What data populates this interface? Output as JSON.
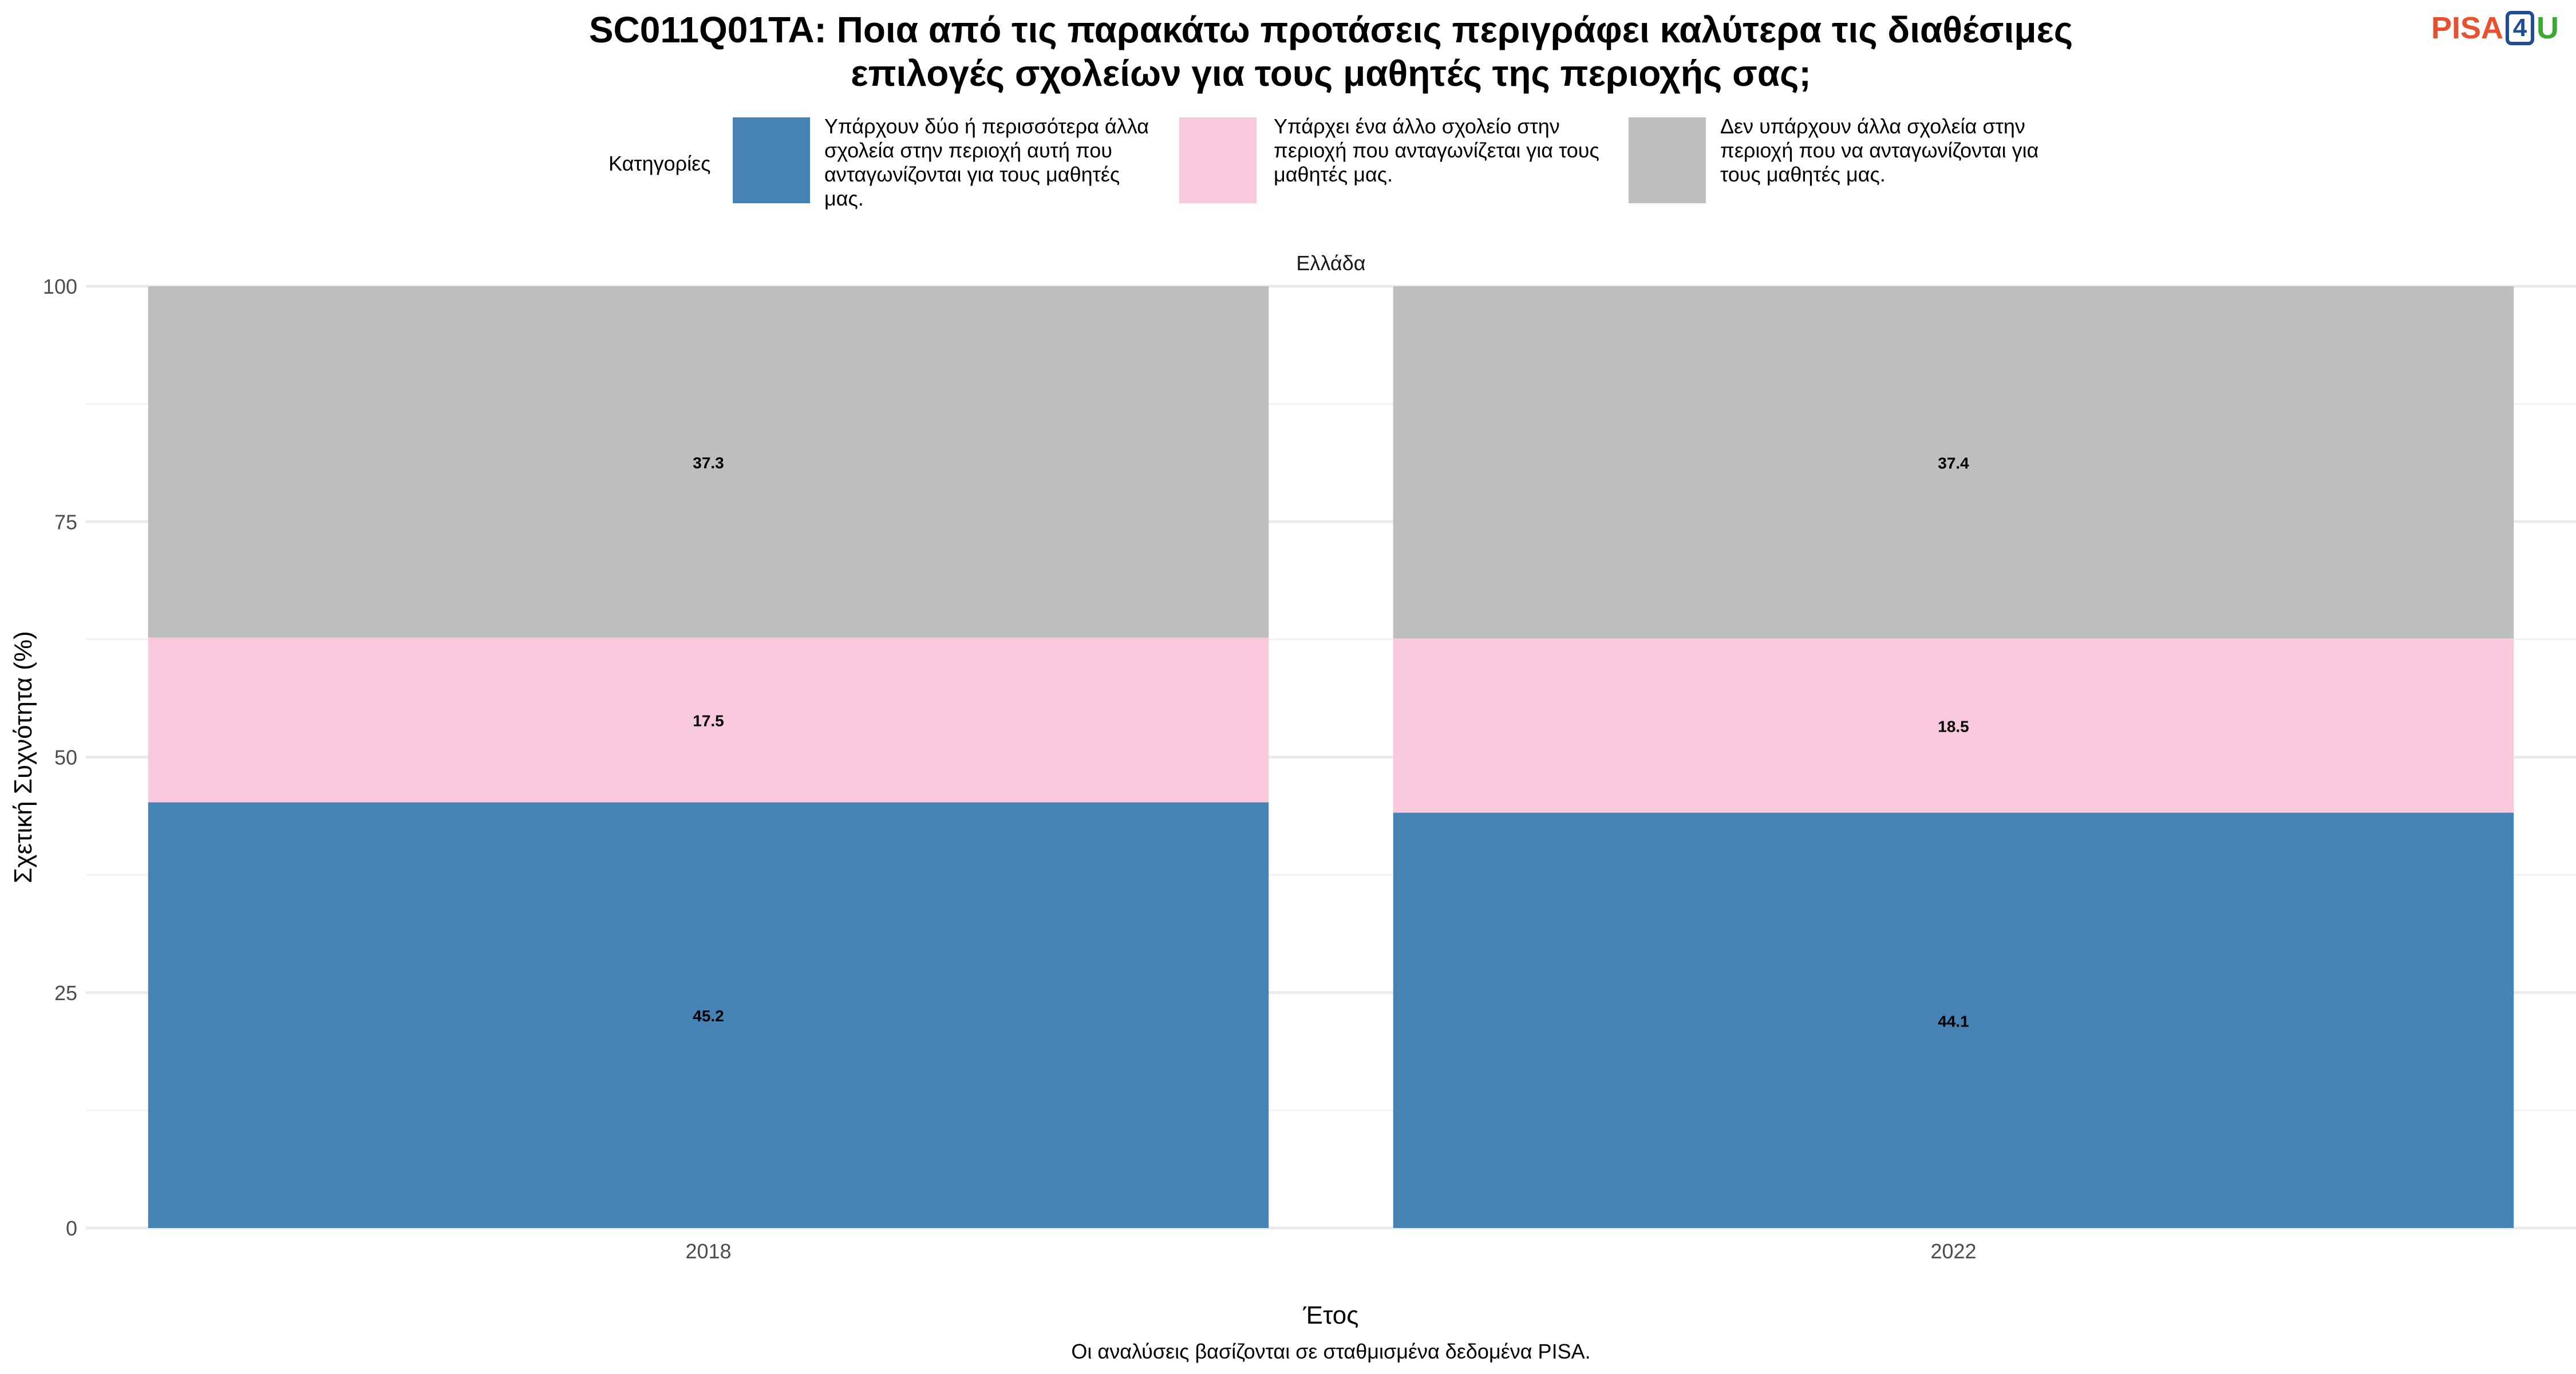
{
  "chart_data": {
    "type": "bar",
    "stacked": true,
    "title_lines": [
      "SC011Q01TA: Ποια από τις παρακάτω προτάσεις περιγράφει καλύτερα τις διαθέσιμες",
      "επιλογές σχολείων για τους μαθητές της περιοχής σας;"
    ],
    "facet_label": "Ελλάδα",
    "xlabel": "Έτος",
    "ylabel": "Σχετική Συχνότητα (%)",
    "categories": [
      "2018",
      "2022"
    ],
    "ylim": [
      0,
      100
    ],
    "yticks": [
      0,
      25,
      50,
      75,
      100
    ],
    "legend_title": "Κατηγορίες",
    "legend_position": "top",
    "grid": true,
    "series": [
      {
        "name_lines": [
          "Υπάρχουν δύο ή περισσότερα άλλα",
          "σχολεία στην περιοχή αυτή που",
          "ανταγωνίζονται για τους μαθητές",
          "μας."
        ],
        "values": [
          45.2,
          44.1
        ],
        "labels": [
          "45.2",
          "44.1"
        ],
        "color": "#4682b4"
      },
      {
        "name_lines": [
          "Υπάρχει ένα άλλο σχολείο στην",
          "περιοχή που ανταγωνίζεται για τους",
          "μαθητές μας."
        ],
        "values": [
          17.5,
          18.5
        ],
        "labels": [
          "17.5",
          "18.5"
        ],
        "color": "#f8c8dc"
      },
      {
        "name_lines": [
          "Δεν υπάρχουν άλλα σχολεία στην",
          "περιοχή που να ανταγωνίζονται για",
          "τους μαθητές μας."
        ],
        "values": [
          37.3,
          37.4
        ],
        "labels": [
          "37.3",
          "37.4"
        ],
        "color": "#bebebe"
      }
    ]
  },
  "logo": {
    "part1": "PISA",
    "part2": "4",
    "part3": "U"
  },
  "footnote": "Οι αναλύσεις βασίζονται σε σταθμισμένα δεδομένα PISA."
}
